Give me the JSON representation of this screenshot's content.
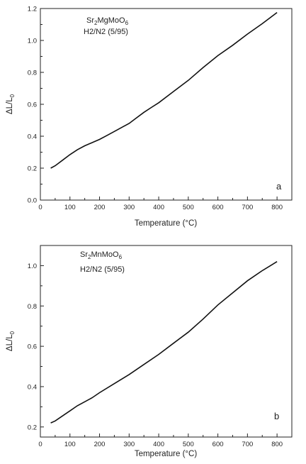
{
  "chart_data": [
    {
      "type": "line",
      "panel_label": "a",
      "annotation": {
        "formula_base": "Sr",
        "formula_sub1": "2",
        "formula_mid": "MgMoO",
        "formula_sub2": "6",
        "atmosphere": "H2/N2 (5/95)"
      },
      "xlabel": "Temperature (°C)",
      "ylabel": {
        "base": "ΔL/L",
        "sub": "0"
      },
      "xlim": [
        0,
        850
      ],
      "ylim": [
        0.0,
        1.2
      ],
      "xticks": [
        0,
        100,
        200,
        300,
        400,
        500,
        600,
        700,
        800
      ],
      "yticks": [
        0.0,
        0.2,
        0.4,
        0.6,
        0.8,
        1.0,
        1.2
      ],
      "ytick_labels": [
        "0.0",
        "0.2",
        "0.4",
        "0.6",
        "0.8",
        "1.0",
        "1.2"
      ],
      "series": [
        {
          "x": [
            35,
            50,
            75,
            100,
            125,
            150,
            175,
            200,
            225,
            250,
            275,
            300,
            325,
            350,
            375,
            400,
            450,
            500,
            550,
            600,
            650,
            700,
            750,
            800
          ],
          "y": [
            0.2,
            0.215,
            0.25,
            0.285,
            0.315,
            0.34,
            0.36,
            0.38,
            0.405,
            0.43,
            0.455,
            0.48,
            0.515,
            0.55,
            0.58,
            0.61,
            0.68,
            0.75,
            0.83,
            0.905,
            0.97,
            1.04,
            1.105,
            1.175
          ]
        }
      ]
    },
    {
      "type": "line",
      "panel_label": "b",
      "annotation": {
        "formula_base": "Sr",
        "formula_sub1": "2",
        "formula_mid": "MnMoO",
        "formula_sub2": "6",
        "atmosphere": "H2/N2 (5/95)"
      },
      "xlabel": "Temperature (°C)",
      "ylabel": {
        "base": "ΔL/L",
        "sub": "0"
      },
      "xlim": [
        0,
        850
      ],
      "ylim": [
        0.15,
        1.1
      ],
      "xticks": [
        0,
        100,
        200,
        300,
        400,
        500,
        600,
        700,
        800
      ],
      "yticks": [
        0.2,
        0.4,
        0.6,
        0.8,
        1.0
      ],
      "ytick_labels": [
        "0.2",
        "0.4",
        "0.6",
        "0.8",
        "1.0"
      ],
      "series": [
        {
          "x": [
            35,
            50,
            75,
            100,
            125,
            150,
            175,
            200,
            250,
            300,
            350,
            400,
            450,
            500,
            550,
            600,
            650,
            700,
            750,
            800
          ],
          "y": [
            0.22,
            0.23,
            0.255,
            0.28,
            0.305,
            0.325,
            0.345,
            0.37,
            0.415,
            0.46,
            0.51,
            0.56,
            0.615,
            0.67,
            0.735,
            0.805,
            0.865,
            0.925,
            0.975,
            1.02
          ]
        }
      ]
    }
  ]
}
